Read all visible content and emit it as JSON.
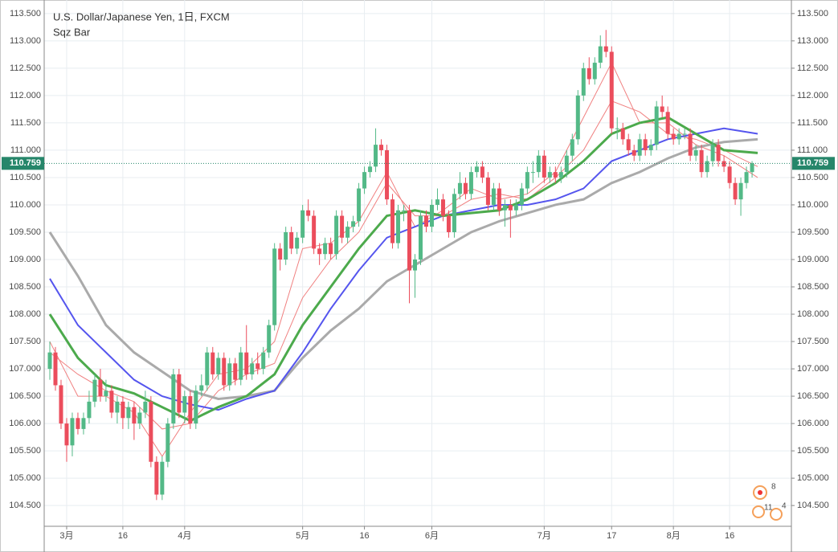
{
  "chart_data": {
    "type": "candlestick",
    "title": "U.S. Dollar/Japanese Yen, 1日, FXCM",
    "subtitle": "Sqz Bar",
    "up_color": "#53b987",
    "down_color": "#eb4d5c",
    "xlim": [
      -1,
      132
    ],
    "ylim": [
      104.12,
      113.63
    ],
    "grid": true,
    "xticks": [
      {
        "value": 3,
        "label": "3月"
      },
      {
        "value": 13,
        "label": "16"
      },
      {
        "value": 24,
        "label": "4月"
      },
      {
        "value": 45,
        "label": "5月"
      },
      {
        "value": 56,
        "label": "16"
      },
      {
        "value": 68,
        "label": "6月"
      },
      {
        "value": 88,
        "label": "7月"
      },
      {
        "value": 100,
        "label": "17"
      },
      {
        "value": 111,
        "label": "8月"
      },
      {
        "value": 121,
        "label": "16"
      }
    ],
    "yticks": [
      {
        "value": 104.5,
        "label": "104.500"
      },
      {
        "value": 105,
        "label": "105.000"
      },
      {
        "value": 105.5,
        "label": "105.500"
      },
      {
        "value": 106,
        "label": "106.000"
      },
      {
        "value": 106.5,
        "label": "106.500"
      },
      {
        "value": 107,
        "label": "107.000"
      },
      {
        "value": 107.5,
        "label": "107.500"
      },
      {
        "value": 108,
        "label": "108.000"
      },
      {
        "value": 108.5,
        "label": "108.500"
      },
      {
        "value": 109,
        "label": "109.000"
      },
      {
        "value": 109.5,
        "label": "109.500"
      },
      {
        "value": 110,
        "label": "110.000"
      },
      {
        "value": 110.5,
        "label": "110.500"
      },
      {
        "value": 111,
        "label": "111.000"
      },
      {
        "value": 111.5,
        "label": "111.500"
      },
      {
        "value": 112,
        "label": "112.000"
      },
      {
        "value": 112.5,
        "label": "112.500"
      },
      {
        "value": 113,
        "label": "113.000"
      },
      {
        "value": 113.5,
        "label": "113.500"
      }
    ],
    "last_price": 110.759,
    "last_price_color": "#26866a",
    "events": [
      "8",
      "11",
      "4"
    ],
    "candles": [
      [
        107.0,
        107.5,
        106.8,
        107.3
      ],
      [
        107.3,
        107.4,
        106.6,
        106.7
      ],
      [
        106.7,
        106.8,
        105.9,
        106.0
      ],
      [
        106.0,
        106.1,
        105.3,
        105.6
      ],
      [
        105.6,
        106.2,
        105.4,
        106.1
      ],
      [
        106.1,
        106.2,
        105.8,
        105.9
      ],
      [
        105.9,
        106.2,
        105.8,
        106.1
      ],
      [
        106.1,
        106.6,
        106.0,
        106.4
      ],
      [
        106.4,
        106.9,
        106.3,
        106.8
      ],
      [
        106.8,
        107.0,
        106.4,
        106.5
      ],
      [
        106.5,
        106.8,
        106.4,
        106.6
      ],
      [
        106.6,
        106.7,
        106.1,
        106.2
      ],
      [
        106.2,
        106.5,
        106.0,
        106.4
      ],
      [
        106.4,
        106.5,
        105.9,
        106.1
      ],
      [
        106.1,
        106.4,
        105.9,
        106.3
      ],
      [
        106.3,
        106.4,
        105.7,
        106.0
      ],
      [
        106.0,
        106.3,
        105.9,
        106.2
      ],
      [
        106.2,
        106.6,
        106.1,
        106.4
      ],
      [
        106.4,
        106.5,
        105.2,
        105.3
      ],
      [
        105.3,
        105.4,
        104.6,
        104.7
      ],
      [
        104.7,
        105.4,
        104.6,
        105.3
      ],
      [
        105.3,
        106.1,
        105.2,
        106.0
      ],
      [
        106.0,
        107.0,
        105.9,
        106.9
      ],
      [
        106.9,
        107.0,
        106.1,
        106.2
      ],
      [
        106.2,
        106.6,
        106.0,
        106.5
      ],
      [
        106.5,
        106.6,
        105.9,
        106.0
      ],
      [
        106.0,
        106.7,
        105.9,
        106.6
      ],
      [
        106.6,
        106.9,
        106.5,
        106.7
      ],
      [
        106.7,
        107.4,
        106.6,
        107.3
      ],
      [
        107.3,
        107.4,
        106.8,
        106.9
      ],
      [
        106.9,
        107.3,
        106.8,
        107.2
      ],
      [
        107.2,
        107.3,
        106.6,
        106.7
      ],
      [
        106.7,
        107.2,
        106.6,
        107.1
      ],
      [
        107.1,
        107.2,
        106.7,
        106.8
      ],
      [
        106.8,
        107.4,
        106.7,
        107.3
      ],
      [
        107.3,
        107.8,
        106.8,
        106.9
      ],
      [
        106.9,
        107.2,
        106.8,
        107.1
      ],
      [
        107.1,
        107.3,
        106.9,
        107.0
      ],
      [
        107.0,
        107.4,
        106.9,
        107.3
      ],
      [
        107.3,
        107.9,
        107.2,
        107.8
      ],
      [
        107.8,
        109.3,
        107.7,
        109.2
      ],
      [
        109.2,
        109.3,
        108.8,
        109.0
      ],
      [
        109.0,
        109.6,
        108.9,
        109.5
      ],
      [
        109.5,
        109.6,
        109.1,
        109.2
      ],
      [
        109.2,
        109.5,
        109.1,
        109.4
      ],
      [
        109.4,
        110.0,
        109.3,
        109.9
      ],
      [
        109.9,
        110.1,
        109.7,
        109.8
      ],
      [
        109.8,
        109.9,
        109.1,
        109.2
      ],
      [
        109.2,
        109.3,
        108.9,
        109.1
      ],
      [
        109.1,
        109.4,
        109.0,
        109.3
      ],
      [
        109.3,
        109.4,
        109.0,
        109.1
      ],
      [
        109.1,
        109.9,
        109.0,
        109.8
      ],
      [
        109.8,
        109.9,
        109.3,
        109.4
      ],
      [
        109.4,
        109.7,
        109.3,
        109.6
      ],
      [
        109.6,
        109.8,
        109.5,
        109.7
      ],
      [
        109.7,
        110.4,
        109.6,
        110.3
      ],
      [
        110.3,
        110.7,
        110.2,
        110.6
      ],
      [
        110.6,
        110.8,
        110.5,
        110.7
      ],
      [
        110.7,
        111.4,
        110.6,
        111.1
      ],
      [
        111.1,
        111.2,
        110.9,
        111.0
      ],
      [
        111.0,
        111.1,
        110.0,
        110.1
      ],
      [
        110.1,
        110.2,
        109.2,
        109.3
      ],
      [
        109.3,
        110.0,
        109.2,
        109.9
      ],
      [
        109.9,
        110.0,
        109.7,
        109.9
      ],
      [
        109.9,
        110.0,
        108.2,
        108.8
      ],
      [
        108.8,
        109.1,
        108.3,
        109.0
      ],
      [
        109.0,
        109.9,
        108.9,
        109.8
      ],
      [
        109.8,
        109.9,
        109.5,
        109.6
      ],
      [
        109.6,
        110.1,
        109.5,
        110.0
      ],
      [
        110.0,
        110.3,
        109.9,
        110.1
      ],
      [
        110.1,
        110.2,
        109.7,
        109.8
      ],
      [
        109.8,
        109.9,
        109.4,
        109.5
      ],
      [
        109.5,
        110.3,
        109.4,
        110.2
      ],
      [
        110.2,
        110.6,
        110.1,
        110.4
      ],
      [
        110.4,
        110.5,
        110.1,
        110.2
      ],
      [
        110.2,
        110.7,
        110.1,
        110.6
      ],
      [
        110.6,
        110.8,
        110.5,
        110.7
      ],
      [
        110.7,
        110.8,
        110.4,
        110.5
      ],
      [
        110.5,
        110.6,
        109.9,
        110.0
      ],
      [
        110.0,
        110.4,
        109.9,
        110.3
      ],
      [
        110.3,
        110.4,
        109.8,
        109.9
      ],
      [
        109.9,
        110.1,
        109.6,
        110.0
      ],
      [
        110.0,
        110.1,
        109.4,
        109.9
      ],
      [
        109.9,
        110.1,
        109.8,
        110.0
      ],
      [
        110.0,
        110.4,
        109.9,
        110.3
      ],
      [
        110.3,
        110.7,
        110.2,
        110.6
      ],
      [
        110.6,
        110.8,
        110.4,
        110.6
      ],
      [
        110.6,
        111.0,
        110.5,
        110.9
      ],
      [
        110.9,
        111.0,
        110.4,
        110.5
      ],
      [
        110.5,
        110.7,
        110.4,
        110.6
      ],
      [
        110.6,
        110.7,
        110.4,
        110.5
      ],
      [
        110.5,
        110.7,
        110.4,
        110.6
      ],
      [
        110.6,
        111.0,
        110.5,
        110.9
      ],
      [
        110.9,
        111.3,
        110.8,
        111.2
      ],
      [
        111.2,
        112.1,
        111.1,
        112.0
      ],
      [
        112.0,
        112.6,
        111.9,
        112.5
      ],
      [
        112.5,
        112.7,
        112.2,
        112.3
      ],
      [
        112.3,
        112.7,
        112.2,
        112.6
      ],
      [
        112.6,
        113.1,
        112.5,
        112.9
      ],
      [
        112.9,
        113.2,
        112.7,
        112.8
      ],
      [
        112.8,
        112.9,
        111.3,
        111.4
      ],
      [
        111.4,
        111.6,
        111.2,
        111.4
      ],
      [
        111.4,
        111.5,
        111.1,
        111.2
      ],
      [
        111.2,
        111.3,
        110.9,
        111.0
      ],
      [
        111.0,
        111.1,
        110.8,
        110.9
      ],
      [
        110.9,
        111.3,
        110.8,
        111.2
      ],
      [
        111.2,
        111.3,
        110.9,
        111.0
      ],
      [
        111.0,
        111.2,
        110.9,
        111.1
      ],
      [
        111.1,
        111.9,
        111.0,
        111.8
      ],
      [
        111.8,
        112.0,
        111.6,
        111.7
      ],
      [
        111.7,
        111.8,
        111.2,
        111.3
      ],
      [
        111.3,
        111.4,
        111.1,
        111.2
      ],
      [
        111.2,
        111.4,
        111.1,
        111.3
      ],
      [
        111.3,
        111.4,
        111.2,
        111.3
      ],
      [
        111.3,
        111.4,
        110.8,
        110.9
      ],
      [
        110.9,
        111.1,
        110.8,
        111.0
      ],
      [
        111.0,
        111.1,
        110.5,
        110.6
      ],
      [
        110.6,
        110.9,
        110.5,
        110.8
      ],
      [
        110.8,
        111.2,
        110.7,
        111.1
      ],
      [
        111.1,
        111.2,
        110.7,
        110.8
      ],
      [
        110.8,
        110.9,
        110.6,
        110.7
      ],
      [
        110.7,
        110.8,
        110.3,
        110.4
      ],
      [
        110.4,
        110.5,
        110.0,
        110.1
      ],
      [
        110.1,
        110.5,
        109.8,
        110.4
      ],
      [
        110.4,
        110.7,
        110.3,
        110.6
      ],
      [
        110.6,
        110.8,
        110.5,
        110.759
      ]
    ],
    "lines": [
      {
        "color": "#f08080",
        "width": 1,
        "x": [
          0,
          5,
          10,
          15,
          20,
          25,
          30,
          35,
          40,
          45,
          50,
          55,
          60,
          65,
          70,
          75,
          80,
          85,
          90,
          95,
          100,
          105,
          110,
          115,
          120,
          126
        ],
        "values": [
          107.5,
          106.5,
          106.5,
          106.2,
          105.4,
          106.2,
          106.9,
          107.0,
          107.5,
          109.2,
          109.3,
          109.7,
          110.6,
          109.6,
          109.9,
          110.3,
          110.1,
          110.2,
          110.6,
          111.6,
          112.6,
          111.5,
          111.5,
          111.1,
          110.9,
          110.5
        ]
      },
      {
        "color": "#f08080",
        "width": 1,
        "x": [
          0,
          5,
          10,
          15,
          20,
          25,
          30,
          35,
          40,
          45,
          50,
          55,
          60,
          65,
          70,
          75,
          80,
          85,
          90,
          95,
          100,
          105,
          110,
          115,
          120,
          126
        ],
        "values": [
          107.3,
          106.9,
          106.6,
          106.4,
          105.9,
          106.0,
          106.6,
          106.9,
          107.1,
          108.3,
          109.0,
          109.5,
          110.4,
          109.8,
          109.8,
          110.1,
          110.2,
          110.1,
          110.5,
          111.0,
          111.9,
          111.7,
          111.3,
          111.2,
          111.0,
          110.7
        ]
      },
      {
        "color": "#aaaaaa",
        "width": 3,
        "x": [
          0,
          5,
          10,
          15,
          20,
          25,
          30,
          35,
          40,
          45,
          50,
          55,
          60,
          65,
          70,
          75,
          80,
          85,
          90,
          95,
          100,
          105,
          110,
          115,
          120,
          126
        ],
        "values": [
          109.5,
          108.7,
          107.8,
          107.3,
          106.95,
          106.6,
          106.45,
          106.5,
          106.6,
          107.2,
          107.7,
          108.1,
          108.6,
          108.9,
          109.2,
          109.5,
          109.7,
          109.85,
          110.0,
          110.1,
          110.4,
          110.6,
          110.85,
          111.05,
          111.15,
          111.2
        ]
      },
      {
        "color": "#5555ee",
        "width": 2,
        "x": [
          0,
          5,
          10,
          15,
          20,
          25,
          30,
          35,
          40,
          45,
          50,
          55,
          60,
          65,
          70,
          75,
          80,
          85,
          90,
          95,
          100,
          105,
          110,
          115,
          120,
          126
        ],
        "values": [
          108.65,
          107.8,
          107.3,
          106.8,
          106.5,
          106.35,
          106.25,
          106.45,
          106.6,
          107.3,
          108.1,
          108.8,
          109.4,
          109.6,
          109.8,
          109.9,
          110.0,
          110.0,
          110.1,
          110.3,
          110.8,
          111.0,
          111.2,
          111.3,
          111.4,
          111.3
        ]
      },
      {
        "color": "#4caa4c",
        "width": 3,
        "x": [
          0,
          5,
          10,
          15,
          20,
          25,
          30,
          35,
          40,
          45,
          50,
          55,
          60,
          65,
          70,
          75,
          80,
          85,
          90,
          95,
          100,
          105,
          110,
          115,
          120,
          126
        ],
        "values": [
          108.0,
          107.2,
          106.7,
          106.55,
          106.3,
          106.05,
          106.3,
          106.5,
          106.9,
          107.8,
          108.5,
          109.2,
          109.8,
          109.9,
          109.8,
          109.85,
          109.9,
          110.1,
          110.4,
          110.8,
          111.3,
          111.5,
          111.6,
          111.3,
          111.0,
          110.95
        ]
      }
    ]
  }
}
